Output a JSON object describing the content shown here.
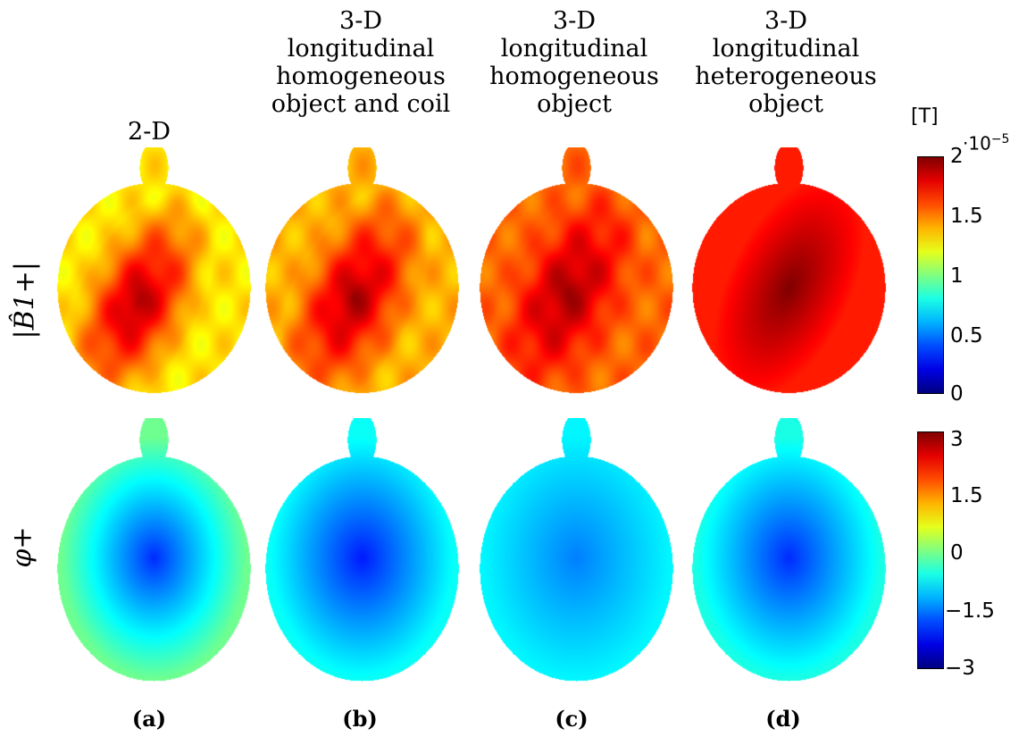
{
  "chart_data": {
    "type": "heatmap",
    "columns": [
      {
        "title_lines": [
          "2-D"
        ],
        "panel_label": "(a)"
      },
      {
        "title_lines": [
          "3-D",
          "longitudinal",
          "homogeneous",
          "object and coil"
        ],
        "panel_label": "(b)"
      },
      {
        "title_lines": [
          "3-D",
          "longitudinal",
          "homogeneous",
          "object"
        ],
        "panel_label": "(c)"
      },
      {
        "title_lines": [
          "3-D",
          "longitudinal",
          "heterogeneous",
          "object"
        ],
        "panel_label": "(d)"
      }
    ],
    "rows": [
      {
        "label": "|B̂1+|",
        "colorbar": {
          "unit": "[T]",
          "exponent_base": "·10",
          "exponent": "−5",
          "range": [
            0,
            2
          ],
          "ticks": [
            "2",
            "1.5",
            "1",
            "0.5",
            "0"
          ]
        },
        "panels": [
          {
            "center_value": 1.95,
            "edge_value": 1.3,
            "center": [
              0.42,
              0.62
            ]
          },
          {
            "center_value": 1.95,
            "edge_value": 1.4,
            "center": [
              0.46,
              0.6
            ]
          },
          {
            "center_value": 1.95,
            "edge_value": 1.55,
            "center": [
              0.46,
              0.58
            ]
          },
          {
            "center_value": 2.0,
            "edge_value": 1.7,
            "center": [
              0.5,
              0.56
            ]
          }
        ]
      },
      {
        "label": "φ+",
        "colorbar": {
          "unit": "",
          "range": [
            -3,
            3
          ],
          "ticks": [
            "3",
            "1.5",
            "0",
            "−1.5",
            "−3"
          ]
        },
        "panels": [
          {
            "center_value": -2.0,
            "edge_value": -0.1,
            "center": [
              0.5,
              0.52
            ]
          },
          {
            "center_value": -2.1,
            "edge_value": -0.7,
            "center": [
              0.5,
              0.52
            ]
          },
          {
            "center_value": -1.5,
            "edge_value": -0.8,
            "center": [
              0.5,
              0.52
            ]
          },
          {
            "center_value": -2.0,
            "edge_value": -0.6,
            "center": [
              0.5,
              0.52
            ]
          }
        ]
      }
    ]
  }
}
